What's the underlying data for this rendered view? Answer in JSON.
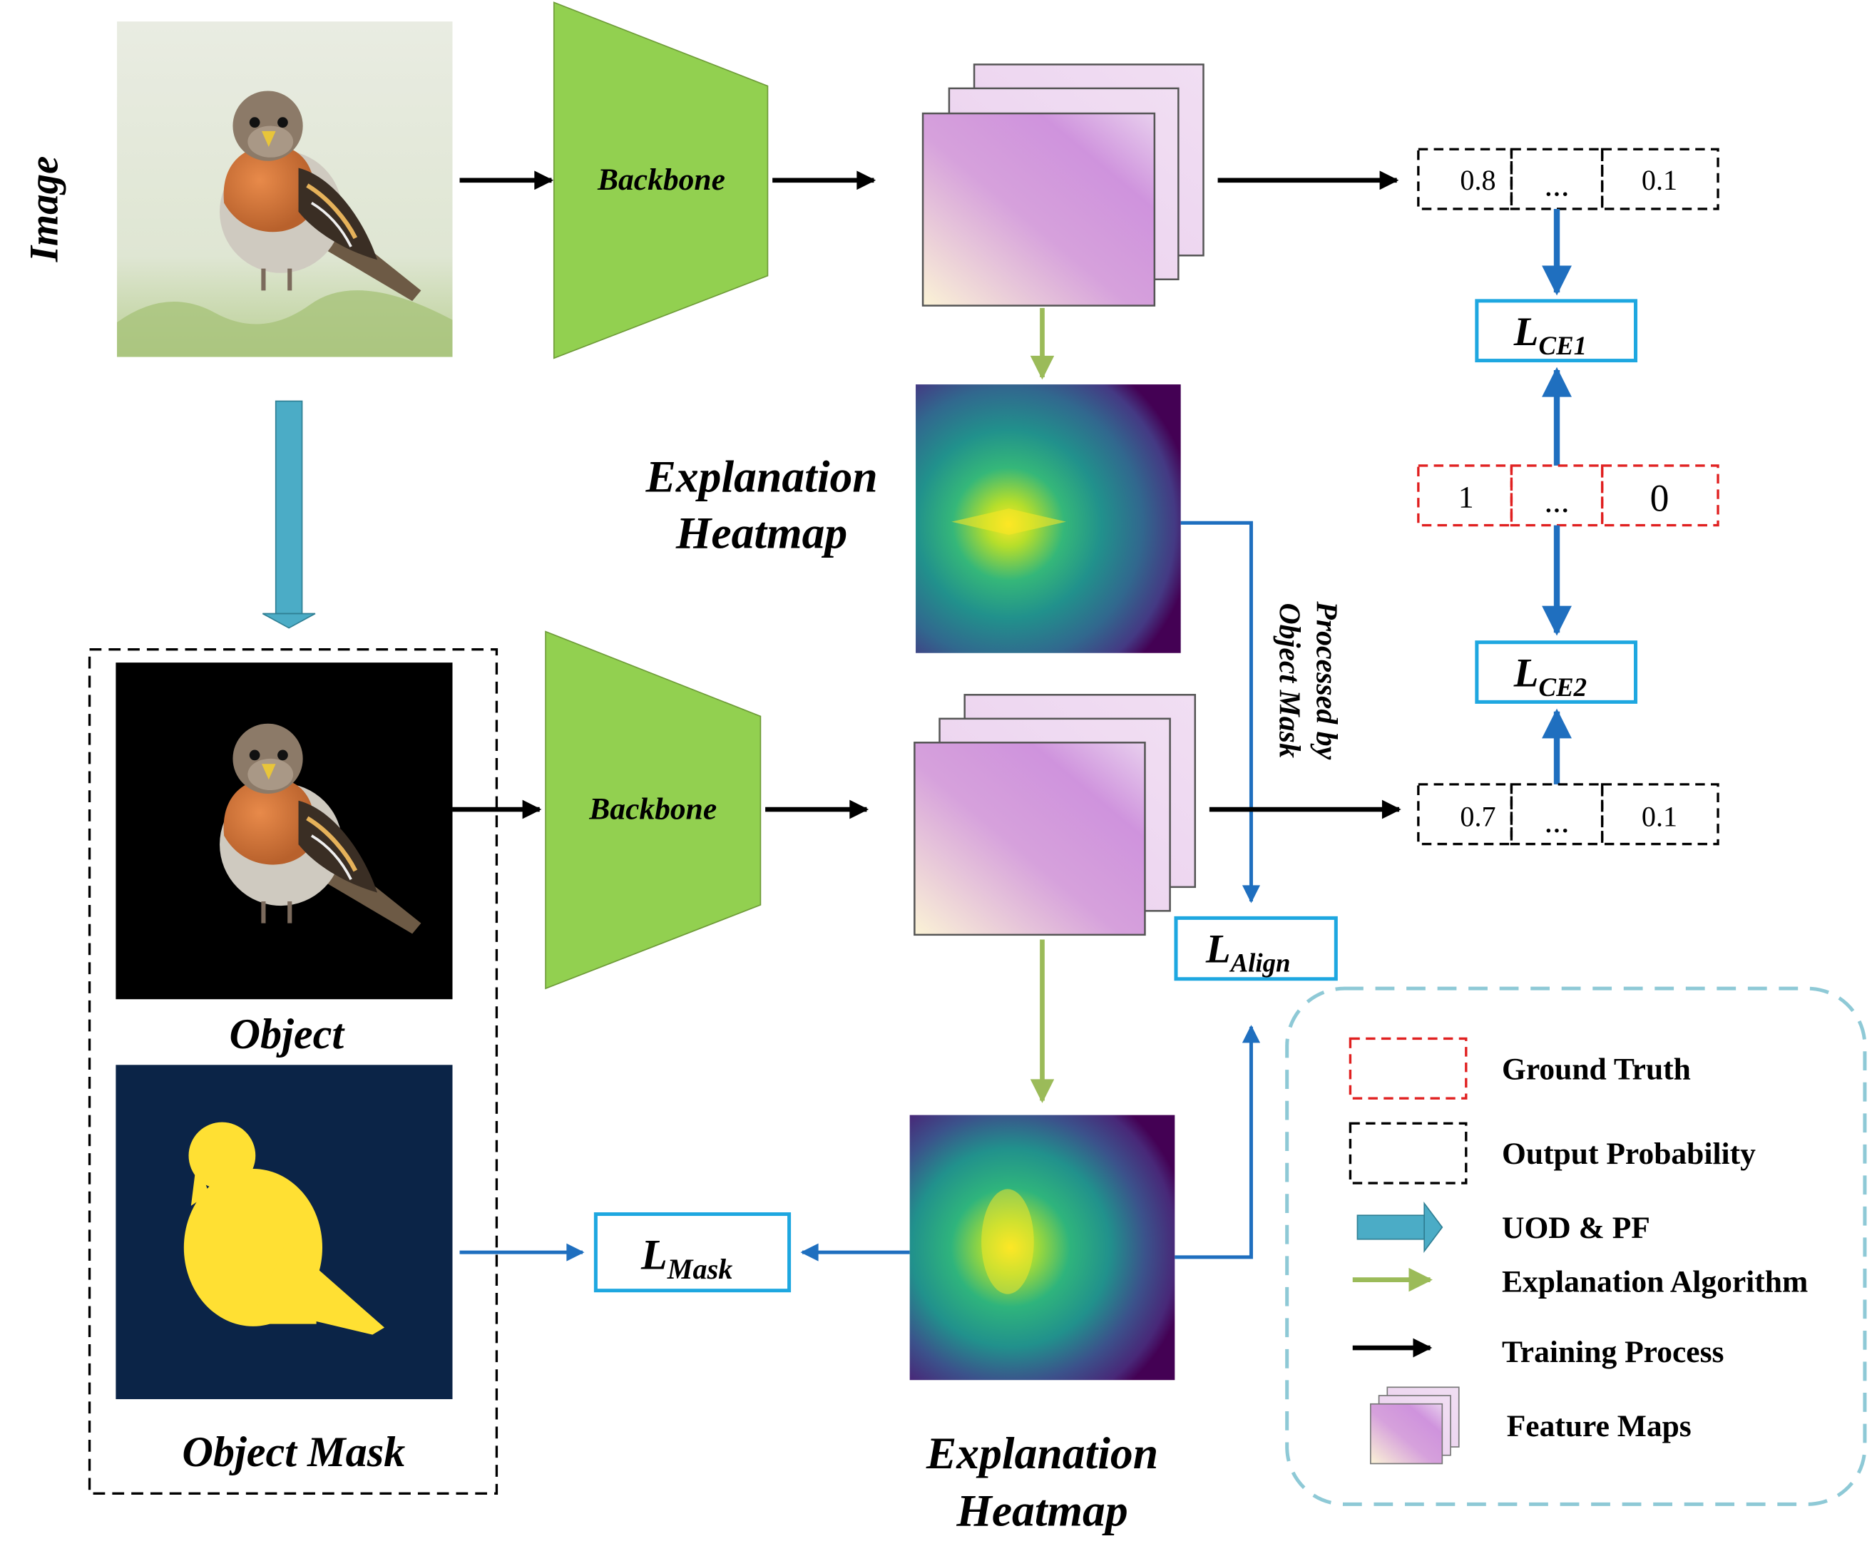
{
  "labels": {
    "image": "Image",
    "backbone_top": "Backbone",
    "backbone_bottom": "Backbone",
    "heatmap_top_line1": "Explanation",
    "heatmap_top_line2": "Heatmap",
    "heatmap_bottom_line1": "Explanation",
    "heatmap_bottom_line2": "Heatmap",
    "object": "Object",
    "object_mask": "Object Mask",
    "processed_line1": "Processed by",
    "processed_line2": "Object Mask"
  },
  "losses": {
    "ce1_main": "L",
    "ce1_sub": "CE1",
    "ce2_main": "L",
    "ce2_sub": "CE2",
    "align_main": "L",
    "align_sub": "Align",
    "mask_main": "L",
    "mask_sub": "Mask"
  },
  "prob_top": [
    "0.8",
    "...",
    "0.1"
  ],
  "ground_truth": [
    "1",
    "...",
    "0"
  ],
  "prob_bottom": [
    "0.7",
    "...",
    "0.1"
  ],
  "legend": {
    "ground_truth": "Ground Truth",
    "output_probability": "Output Probability",
    "uod_pf": "UOD & PF",
    "explanation_algorithm": "Explanation Algorithm",
    "training_process": "Training Process",
    "feature_maps": "Feature Maps"
  },
  "colors": {
    "backbone": "#92d050",
    "ground_truth_border": "#e02020",
    "loss_border": "#1ea7e0",
    "blue_arrow": "#1f6fbf",
    "green_arrow": "#9bbb59",
    "uod_arrow": "#4bacc6",
    "legend_border": "#8ec9d6",
    "mask_bg": "#0b2447",
    "mask_fg": "#ffe033"
  }
}
